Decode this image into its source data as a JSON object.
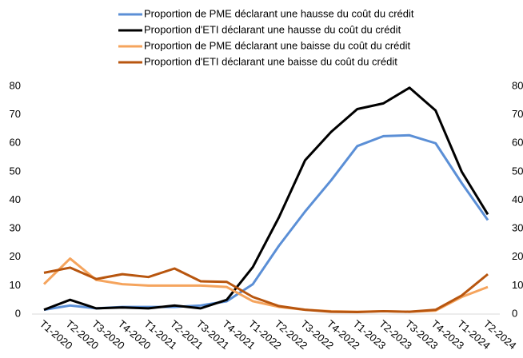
{
  "chart_data": {
    "type": "line",
    "categories": [
      "T1-2020",
      "T2-2020",
      "T3-2020",
      "T4-2020",
      "T1-2021",
      "T2-2021",
      "T3-2021",
      "T4-2021",
      "T1-2022",
      "T2-2022",
      "T3-2022",
      "T4-2022",
      "T1-2023",
      "T2-2023",
      "T3-2023",
      "T4-2023",
      "T1-2024",
      "T2-2024"
    ],
    "series": [
      {
        "name": "Proportion de PME déclarant une hausse du coût du crédit",
        "color": "#5b8fd6",
        "values": [
          1.5,
          3,
          2,
          2.5,
          2.5,
          2.5,
          3,
          4.5,
          10.5,
          24,
          36,
          47,
          59,
          62.5,
          62.8,
          60,
          46,
          33
        ]
      },
      {
        "name": "Proportion d'ETI déclarant une hausse du coût du crédit",
        "color": "#000000",
        "values": [
          1.5,
          5,
          2,
          2.3,
          2,
          3,
          2,
          5,
          16.5,
          34,
          54,
          64,
          72,
          74,
          79.5,
          71.5,
          50,
          35
        ]
      },
      {
        "name": "Proportion de PME déclarant une baisse du coût du crédit",
        "color": "#f5a45d",
        "values": [
          10.5,
          19.5,
          12,
          10.5,
          10,
          10,
          10,
          9.5,
          4.5,
          2.5,
          1.5,
          1,
          0.8,
          1,
          0.8,
          1.2,
          6,
          9.5
        ]
      },
      {
        "name": "Proportion d'ETI déclarant une baisse du coût du crédit",
        "color": "#b8560f",
        "values": [
          14.5,
          16.3,
          12.3,
          14,
          13,
          16,
          11.5,
          11.3,
          6,
          2.8,
          1.5,
          0.8,
          0.7,
          1,
          0.8,
          1.5,
          6.5,
          14
        ]
      }
    ],
    "ylim": [
      0,
      80
    ],
    "yticks": [
      0,
      10,
      20,
      30,
      40,
      50,
      60,
      70,
      80
    ],
    "y2lim": [
      0,
      80
    ],
    "y2ticks": [
      0,
      10,
      20,
      30,
      40,
      50,
      60,
      70,
      80
    ],
    "grid": false,
    "legend": "top"
  }
}
